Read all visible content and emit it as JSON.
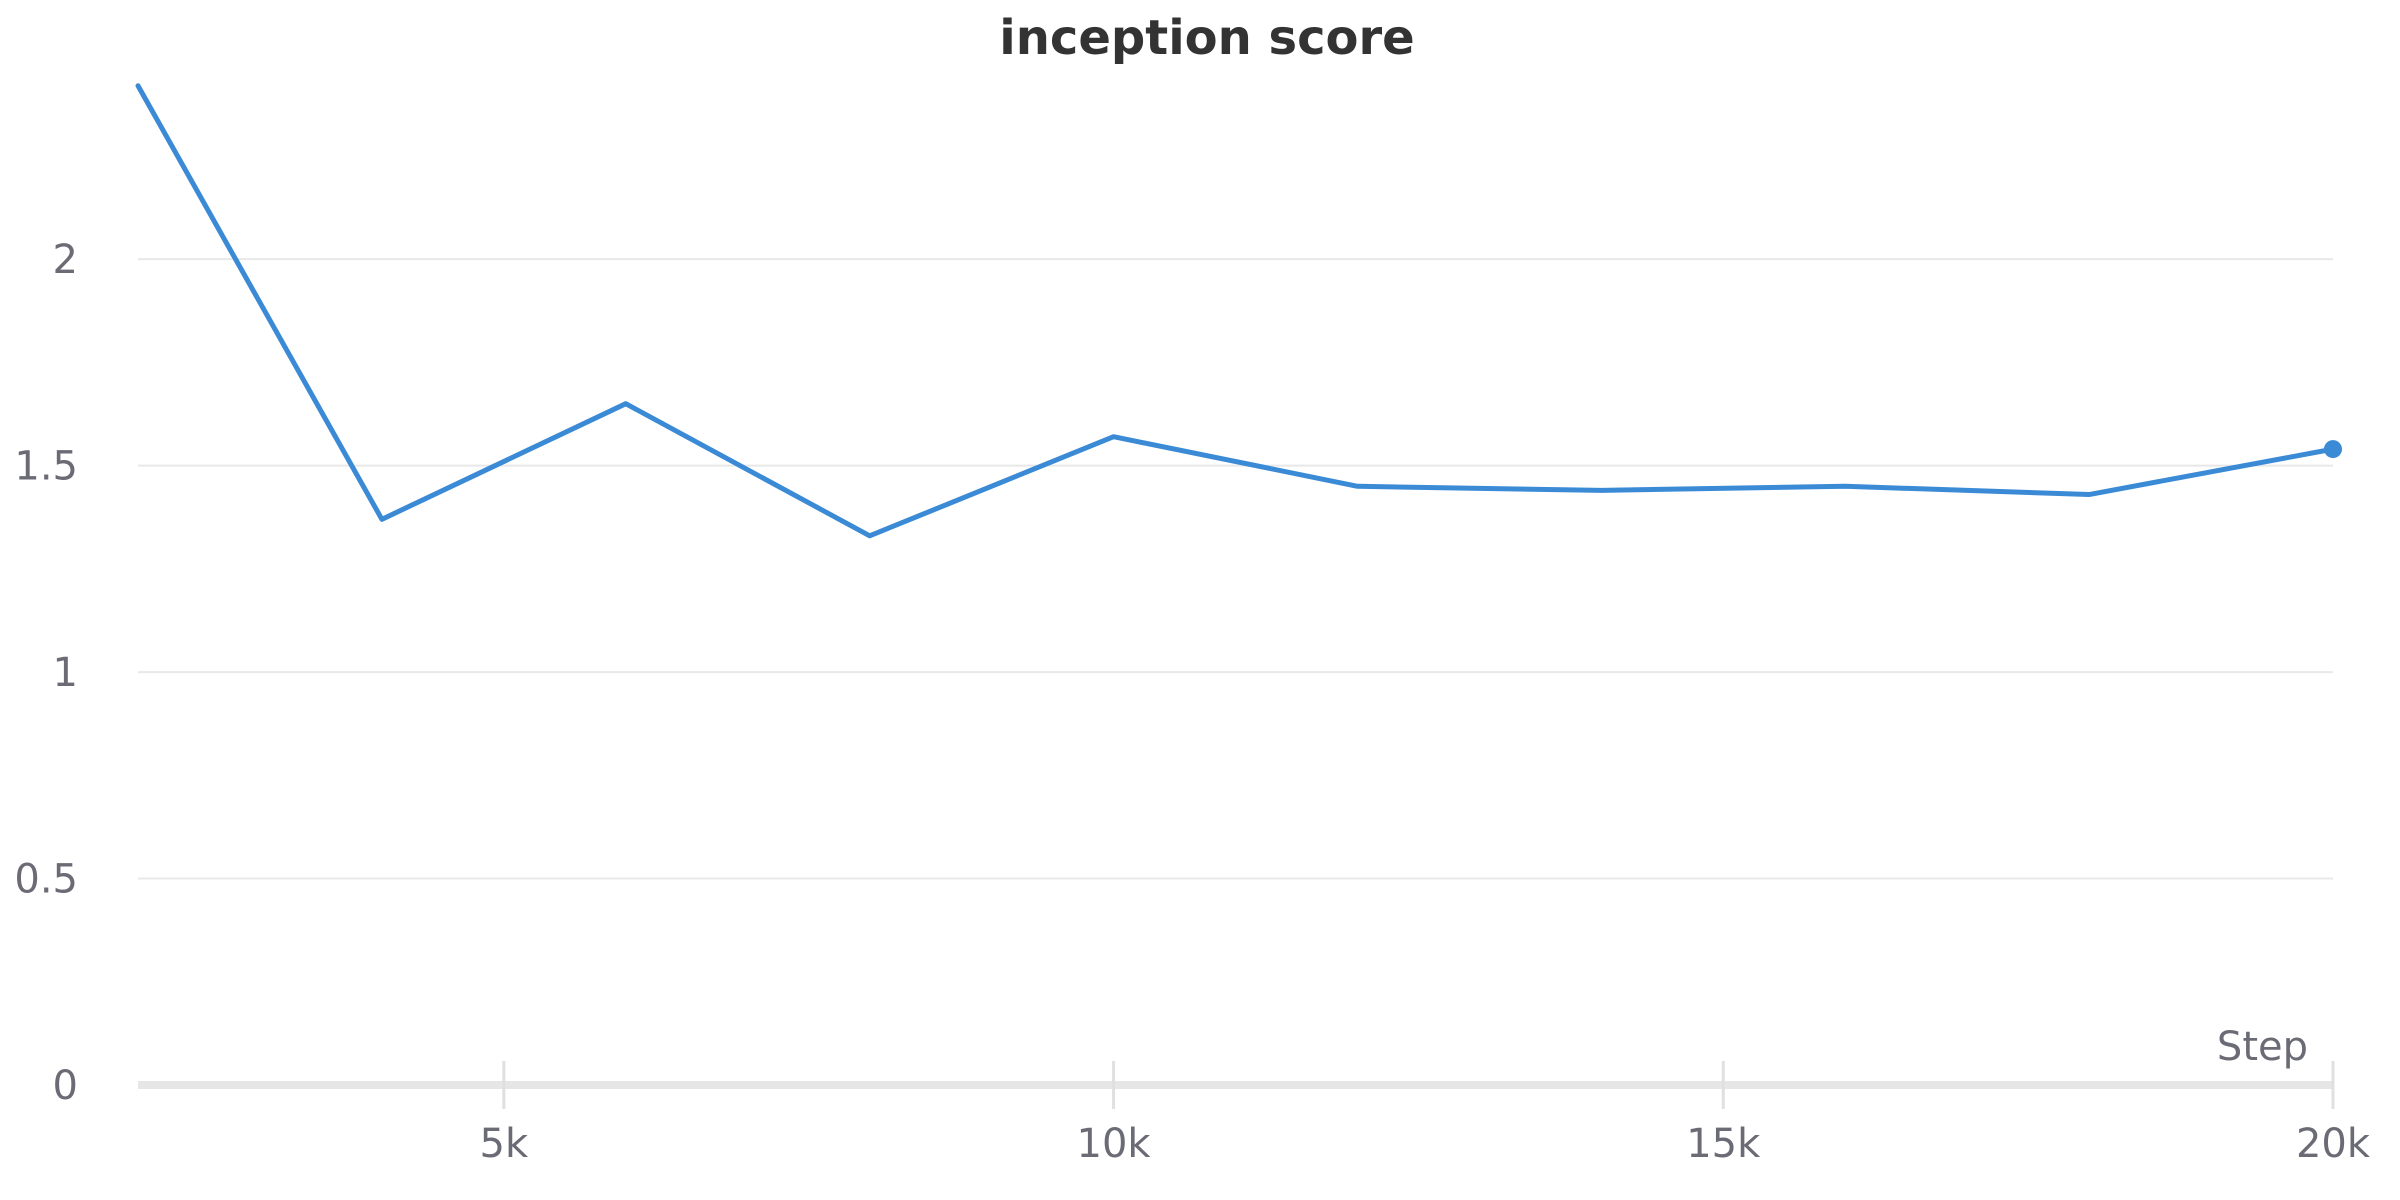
{
  "chart_data": {
    "type": "line",
    "title": "inception score",
    "xlabel": "Step",
    "ylabel": "",
    "xlim": [
      2000,
      20000
    ],
    "ylim": [
      0,
      2.4
    ],
    "x_ticks": [
      5000,
      10000,
      15000,
      20000
    ],
    "x_tick_labels": [
      "5k",
      "10k",
      "15k",
      "20k"
    ],
    "y_ticks": [
      0,
      0.5,
      1,
      1.5,
      2
    ],
    "y_tick_labels": [
      "0",
      "0.5",
      "1",
      "1.5",
      "2"
    ],
    "grid": true,
    "series": [
      {
        "color": "#3a8ad6",
        "x": [
          2000,
          4000,
          6000,
          8000,
          10000,
          12000,
          14000,
          16000,
          18000,
          20000
        ],
        "y": [
          2.42,
          1.37,
          1.65,
          1.33,
          1.57,
          1.45,
          1.44,
          1.45,
          1.43,
          1.54
        ]
      }
    ]
  }
}
